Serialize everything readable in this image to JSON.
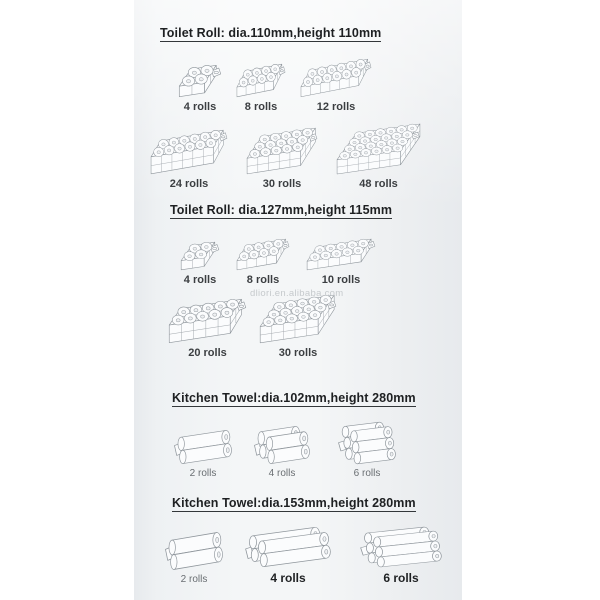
{
  "watermark": "dliori.en.alibaba.com",
  "sections": [
    {
      "id": "toilet-roll-110",
      "heading": "Toilet Roll: dia.110mm,height 110mm",
      "rows": [
        {
          "items": [
            {
              "label": "4 rolls",
              "pack": {
                "type": "toilet",
                "cols": 2,
                "rows": 2,
                "layers": 1
              }
            },
            {
              "label": "8 rolls",
              "pack": {
                "type": "toilet",
                "cols": 4,
                "rows": 2,
                "layers": 1
              }
            },
            {
              "label": "12 rolls",
              "pack": {
                "type": "toilet",
                "cols": 6,
                "rows": 2,
                "layers": 1
              }
            }
          ]
        },
        {
          "items": [
            {
              "label": "24 rolls",
              "pack": {
                "type": "toilet",
                "cols": 6,
                "rows": 2,
                "layers": 2
              }
            },
            {
              "label": "30 rolls",
              "pack": {
                "type": "toilet",
                "cols": 5,
                "rows": 3,
                "layers": 2
              }
            },
            {
              "label": "48 rolls",
              "pack": {
                "type": "toilet",
                "cols": 6,
                "rows": 4,
                "layers": 2
              }
            }
          ]
        }
      ]
    },
    {
      "id": "toilet-roll-127",
      "heading": "Toilet Roll: dia.127mm,height 115mm",
      "rows": [
        {
          "items": [
            {
              "label": "4 rolls",
              "pack": {
                "type": "toilet",
                "cols": 2,
                "rows": 2,
                "layers": 1
              }
            },
            {
              "label": "8 rolls",
              "pack": {
                "type": "toilet",
                "cols": 4,
                "rows": 2,
                "layers": 1
              }
            },
            {
              "label": "10 rolls",
              "pack": {
                "type": "toilet",
                "cols": 5,
                "rows": 2,
                "layers": 1
              }
            }
          ]
        },
        {
          "items": [
            {
              "label": "20 rolls",
              "pack": {
                "type": "toilet",
                "cols": 5,
                "rows": 2,
                "layers": 2
              }
            },
            {
              "label": "30 rolls",
              "pack": {
                "type": "toilet",
                "cols": 5,
                "rows": 3,
                "layers": 2
              }
            }
          ]
        }
      ]
    },
    {
      "id": "kitchen-towel-102",
      "heading": "Kitchen Towel:dia.102mm,height 280mm",
      "rows": [
        {
          "items": [
            {
              "label": "2 rolls",
              "pack": {
                "type": "kitchen",
                "deep": 1,
                "stack": 2,
                "len": 3.0
              }
            },
            {
              "label": "4 rolls",
              "pack": {
                "type": "kitchen",
                "deep": 2,
                "stack": 2,
                "len": 2.3
              }
            },
            {
              "label": "6 rolls",
              "pack": {
                "type": "kitchen",
                "deep": 2,
                "stack": 3,
                "len": 2.2
              }
            }
          ]
        }
      ]
    },
    {
      "id": "kitchen-towel-153",
      "heading": "Kitchen Towel:dia.153mm,height 280mm",
      "rows": [
        {
          "items": [
            {
              "label": "2 rolls",
              "pack": {
                "type": "kitchen",
                "deep": 1,
                "stack": 2,
                "len": 3.0
              }
            },
            {
              "label": "4 rolls",
              "pack": {
                "type": "kitchen",
                "deep": 2,
                "stack": 2,
                "len": 3.8
              }
            },
            {
              "label": "6 rolls",
              "pack": {
                "type": "kitchen",
                "deep": 2,
                "stack": 3,
                "len": 3.4
              }
            }
          ]
        }
      ]
    }
  ]
}
